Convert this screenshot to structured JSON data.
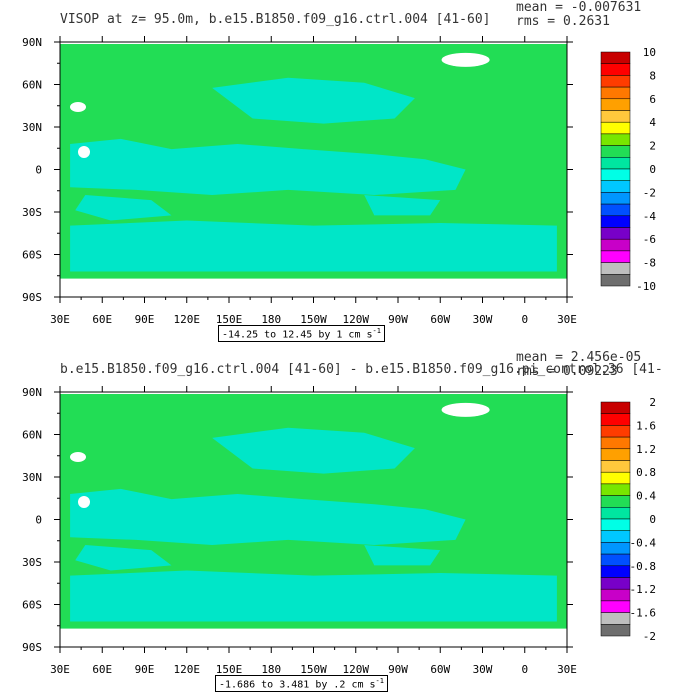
{
  "panels": [
    {
      "title": "VISOP at z=  95.0m, b.e15.B1850.f09_g16.ctrl.004 [41-60]",
      "mean": "mean = -0.007631",
      "rms": "rms = 0.2631",
      "info_main": "-14.25 to 12.45 by 1 cm s",
      "info_exp": "-1",
      "colorbar": {
        "labels": [
          "10",
          "8",
          "6",
          "4",
          "2",
          "0",
          "-2",
          "-4",
          "-6",
          "-8",
          "-10"
        ],
        "colors": [
          "#c80000",
          "#ff0000",
          "#ff3c00",
          "#ff7800",
          "#ffa000",
          "#ffc83c",
          "#ffff00",
          "#78e600",
          "#22dd55",
          "#00e6a0",
          "#00ffe6",
          "#00c8ff",
          "#0096ff",
          "#0050ff",
          "#0000ff",
          "#7800c8",
          "#c800c8",
          "#ff00ff",
          "#bebebe",
          "#6e6e6e"
        ]
      }
    },
    {
      "title": "b.e15.B1850.f09_g16.ctrl.004 [41-60] - b.e15.B1850.f09_g16.pi_control.36 [41-",
      "mean": "mean = 2.456e-05",
      "rms": "rms = 0.09223",
      "info_main": "-1.686 to 3.481 by .2 cm s",
      "info_exp": "-1",
      "colorbar": {
        "labels": [
          "2",
          "1.6",
          "1.2",
          "0.8",
          "0.4",
          "0",
          "-0.4",
          "-0.8",
          "-1.2",
          "-1.6",
          "-2"
        ],
        "colors": [
          "#c80000",
          "#ff0000",
          "#ff3c00",
          "#ff7800",
          "#ffa000",
          "#ffc83c",
          "#ffff00",
          "#78e600",
          "#22dd55",
          "#00e6a0",
          "#00ffe6",
          "#00c8ff",
          "#0096ff",
          "#0050ff",
          "#0000ff",
          "#7800c8",
          "#c800c8",
          "#ff00ff",
          "#bebebe",
          "#6e6e6e"
        ]
      }
    }
  ],
  "map": {
    "x_labels": [
      "30E",
      "60E",
      "90E",
      "120E",
      "150E",
      "180",
      "150W",
      "120W",
      "90W",
      "60W",
      "30W",
      "0",
      "30E"
    ],
    "y_labels": [
      "90N",
      "60N",
      "30N",
      "0",
      "30S",
      "60S",
      "90S"
    ],
    "ocean_color": "#22dd55",
    "field_color": "#00e6c8",
    "land_color": "#ffffff"
  },
  "chart_data": [
    {
      "type": "heatmap",
      "title": "VISOP at z=  95.0m, b.e15.B1850.f09_g16.ctrl.004 [41-60]",
      "x_ticks": [
        "30E",
        "60E",
        "90E",
        "120E",
        "150E",
        "180",
        "150W",
        "120W",
        "90W",
        "60W",
        "30W",
        "0",
        "30E"
      ],
      "y_ticks": [
        "90N",
        "60N",
        "30N",
        "0",
        "30S",
        "60S",
        "90S"
      ],
      "color_levels": [
        -10,
        -8,
        -6,
        -4,
        -2,
        0,
        2,
        4,
        6,
        8,
        10
      ],
      "stats": {
        "mean": -0.007631,
        "rms": 0.2631,
        "min": -14.25,
        "max": 12.45,
        "interval": 1,
        "units": "cm s-1"
      }
    },
    {
      "type": "heatmap",
      "title": "b.e15.B1850.f09_g16.ctrl.004 [41-60] - b.e15.B1850.f09_g16.pi_control.36 [41-",
      "x_ticks": [
        "30E",
        "60E",
        "90E",
        "120E",
        "150E",
        "180",
        "150W",
        "120W",
        "90W",
        "60W",
        "30W",
        "0",
        "30E"
      ],
      "y_ticks": [
        "90N",
        "60N",
        "30N",
        "0",
        "30S",
        "60S",
        "90S"
      ],
      "color_levels": [
        -2,
        -1.6,
        -1.2,
        -0.8,
        -0.4,
        0,
        0.4,
        0.8,
        1.2,
        1.6,
        2
      ],
      "stats": {
        "mean": 2.456e-05,
        "rms": 0.09223,
        "min": -1.686,
        "max": 3.481,
        "interval": 0.2,
        "units": "cm s-1"
      }
    }
  ]
}
